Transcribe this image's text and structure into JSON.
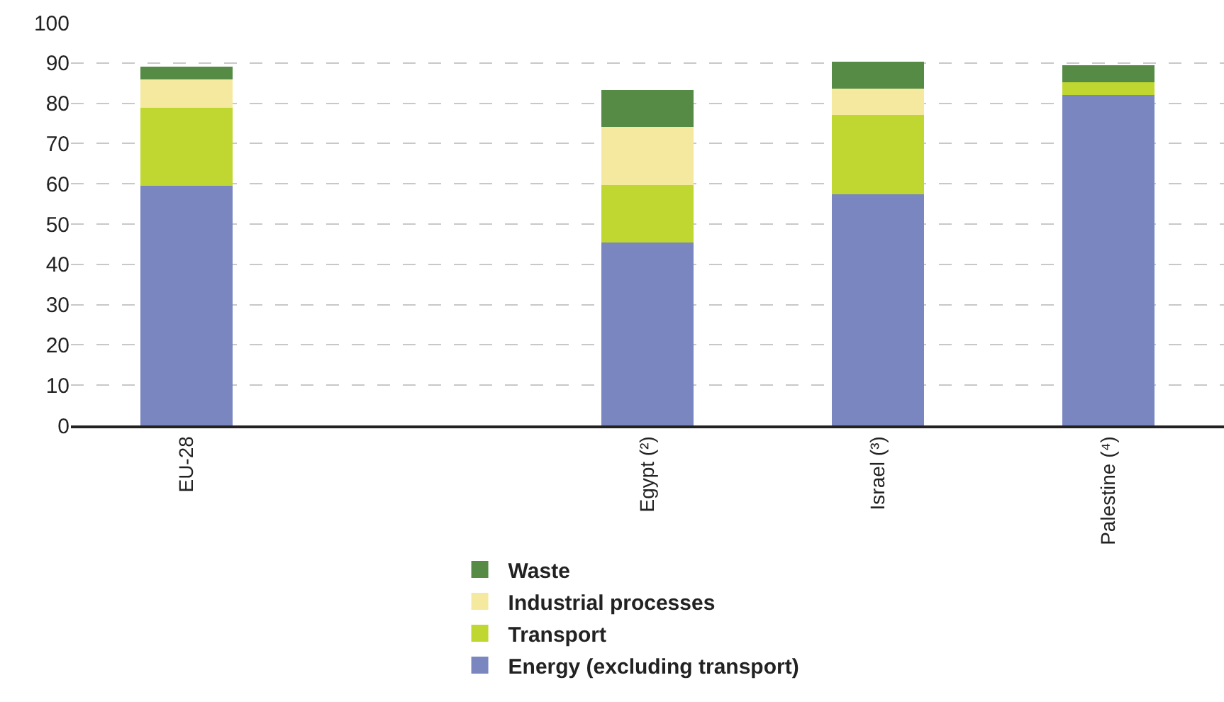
{
  "chart_data": {
    "type": "bar",
    "stacked": true,
    "categories": [
      "EU-28",
      null,
      "Egypt (²)",
      "Israel (³)",
      "Palestine (⁴)"
    ],
    "series": [
      {
        "name": "Energy (excluding transport)",
        "color": "#7986c0",
        "values": [
          59.5,
          null,
          45.4,
          57.4,
          82.0
        ]
      },
      {
        "name": "Transport",
        "color": "#bfd730",
        "values": [
          19.4,
          null,
          14.2,
          19.7,
          3.2
        ]
      },
      {
        "name": "Industrial processes",
        "color": "#f5e9a0",
        "values": [
          7.1,
          null,
          14.6,
          6.6,
          0
        ]
      },
      {
        "name": "Waste",
        "color": "#558b44",
        "values": [
          3.1,
          null,
          9.1,
          6.7,
          4.2
        ]
      }
    ],
    "ylim": [
      0,
      100
    ],
    "yticks": [
      0,
      10,
      20,
      30,
      40,
      50,
      60,
      70,
      80,
      90,
      100
    ],
    "grid": "y",
    "legend": "bottom"
  }
}
